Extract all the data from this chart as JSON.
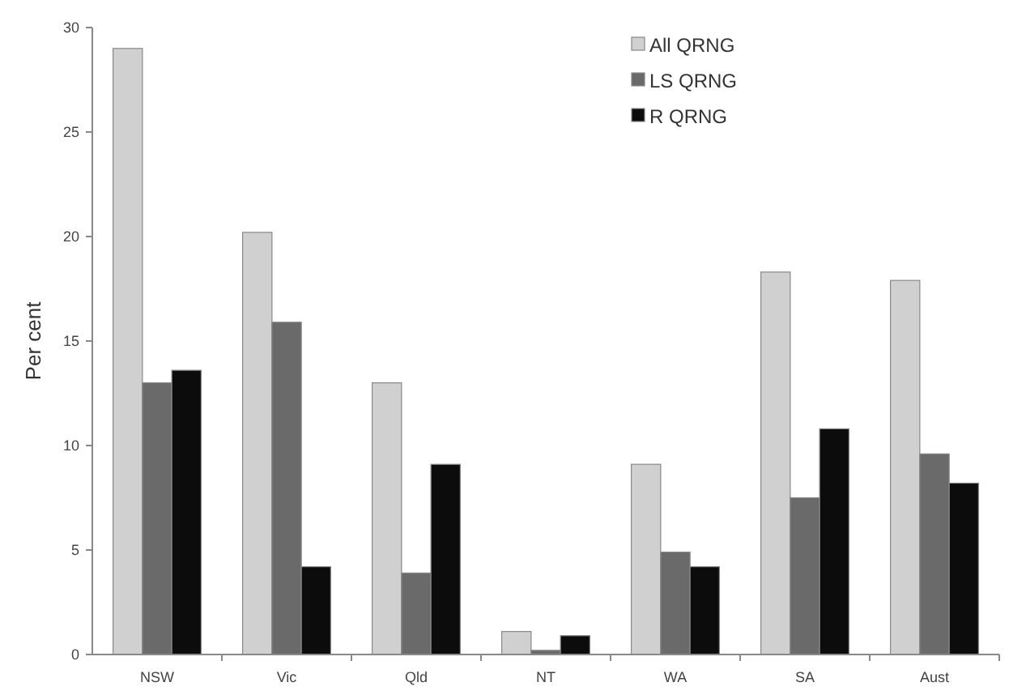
{
  "chart_data": {
    "type": "bar",
    "ylabel": "Per cent",
    "categories": [
      "NSW",
      "Vic",
      "Qld",
      "NT",
      "WA",
      "SA",
      "Aust"
    ],
    "series": [
      {
        "name": "All QRNG",
        "color": "#d0d0d0",
        "values": [
          29,
          20.2,
          13,
          1.1,
          9.1,
          18.3,
          17.9
        ]
      },
      {
        "name": "LS QRNG",
        "color": "#6a6a6a",
        "values": [
          13,
          15.9,
          3.9,
          0.2,
          4.9,
          7.5,
          9.6
        ]
      },
      {
        "name": "R QRNG",
        "color": "#0c0c0c",
        "values": [
          13.6,
          4.2,
          9.1,
          0.9,
          4.2,
          10.8,
          8.2
        ]
      }
    ],
    "ylim": [
      0,
      30
    ],
    "yticks": [
      0,
      5,
      10,
      15,
      20,
      25,
      30
    ],
    "grid": false,
    "legend": "top right"
  }
}
